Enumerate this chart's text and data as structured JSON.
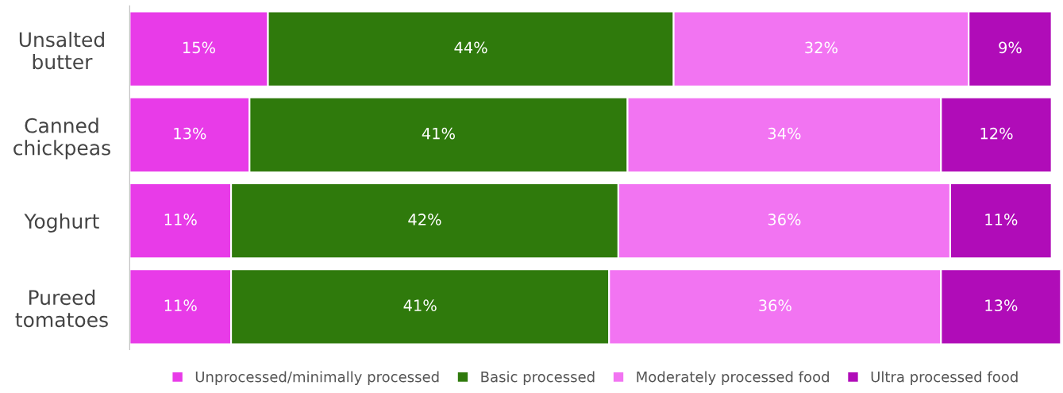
{
  "chart_data": {
    "type": "bar",
    "orientation": "horizontal",
    "stacked": true,
    "categories": [
      "Unsalted\nbutter",
      "Canned\nchickpeas",
      "Yoghurt",
      "Pureed\ntomatoes"
    ],
    "xlim": [
      0,
      101
    ],
    "tick_labels": "y",
    "grid": false,
    "legend": "bottom",
    "series": [
      {
        "name": "Unprocessed/minimally processed",
        "color": "#e83be8",
        "values": [
          15,
          13,
          11,
          11
        ],
        "value_labels": [
          "15%",
          "13%",
          "11%",
          "11%"
        ]
      },
      {
        "name": "Basic processed",
        "color": "#2f7a0c",
        "values": [
          44,
          41,
          42,
          41
        ],
        "value_labels": [
          "44%",
          "41%",
          "42%",
          "41%"
        ]
      },
      {
        "name": "Moderately processed food",
        "color": "#f274f2",
        "values": [
          32,
          34,
          36,
          36
        ],
        "value_labels": [
          "32%",
          "34%",
          "36%",
          "36%"
        ]
      },
      {
        "name": "Ultra processed food",
        "color": "#b00cb8",
        "values": [
          9,
          12,
          11,
          13
        ],
        "value_labels": [
          "9%",
          "12%",
          "11%",
          "13%"
        ]
      }
    ]
  }
}
